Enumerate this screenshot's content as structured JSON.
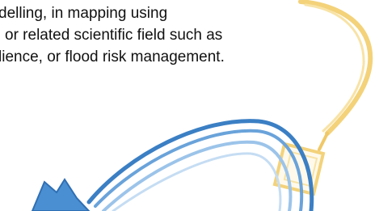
{
  "text_lines": [
    "delling, in mapping using",
    "or related scientific field such as",
    "lience, or flood risk management."
  ]
}
